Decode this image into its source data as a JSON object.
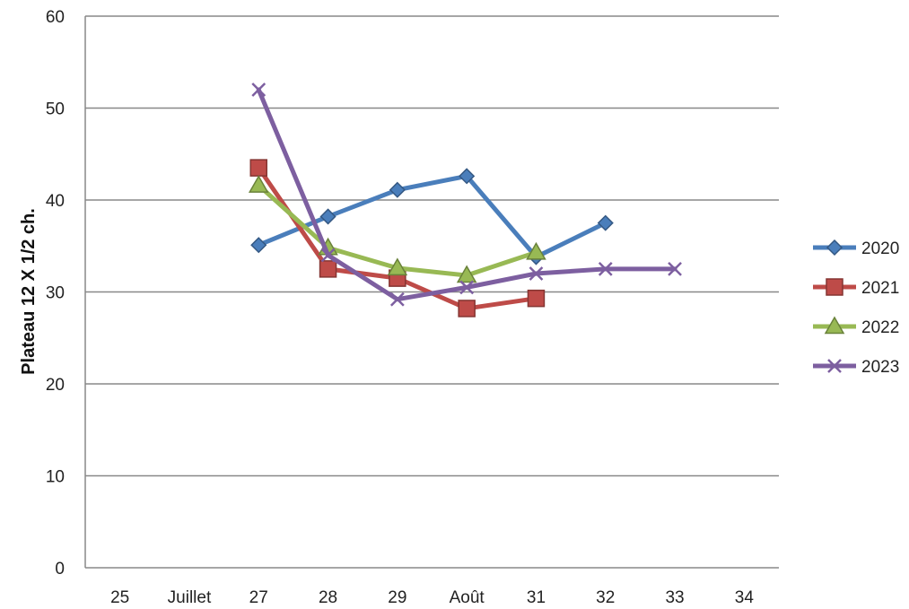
{
  "chart_data": {
    "type": "line",
    "title": "",
    "xlabel": "",
    "ylabel": "Plateau 12 X 1/2 ch.",
    "categories": [
      "25",
      "Juillet",
      "27",
      "28",
      "29",
      "Août",
      "31",
      "32",
      "33",
      "34"
    ],
    "ylim": [
      0,
      60
    ],
    "yticks": [
      0,
      10,
      20,
      30,
      40,
      50,
      60
    ],
    "grid": true,
    "legend_position": "right",
    "series": [
      {
        "name": "2020",
        "color": "#4a7ebb",
        "marker": "diamond",
        "values": [
          null,
          null,
          35.1,
          38.2,
          41.1,
          42.6,
          33.8,
          37.5,
          null,
          null
        ]
      },
      {
        "name": "2021",
        "color": "#be4b48",
        "marker": "square",
        "values": [
          null,
          null,
          43.5,
          32.5,
          31.5,
          28.2,
          29.3,
          null,
          null,
          null
        ]
      },
      {
        "name": "2022",
        "color": "#98b954",
        "marker": "triangle",
        "values": [
          null,
          null,
          41.6,
          34.8,
          32.6,
          31.8,
          34.3,
          null,
          null,
          null
        ]
      },
      {
        "name": "2023",
        "color": "#7d5fa0",
        "marker": "x",
        "values": [
          null,
          null,
          52.0,
          34.0,
          29.2,
          30.5,
          32.0,
          32.5,
          32.5,
          null
        ]
      }
    ]
  }
}
